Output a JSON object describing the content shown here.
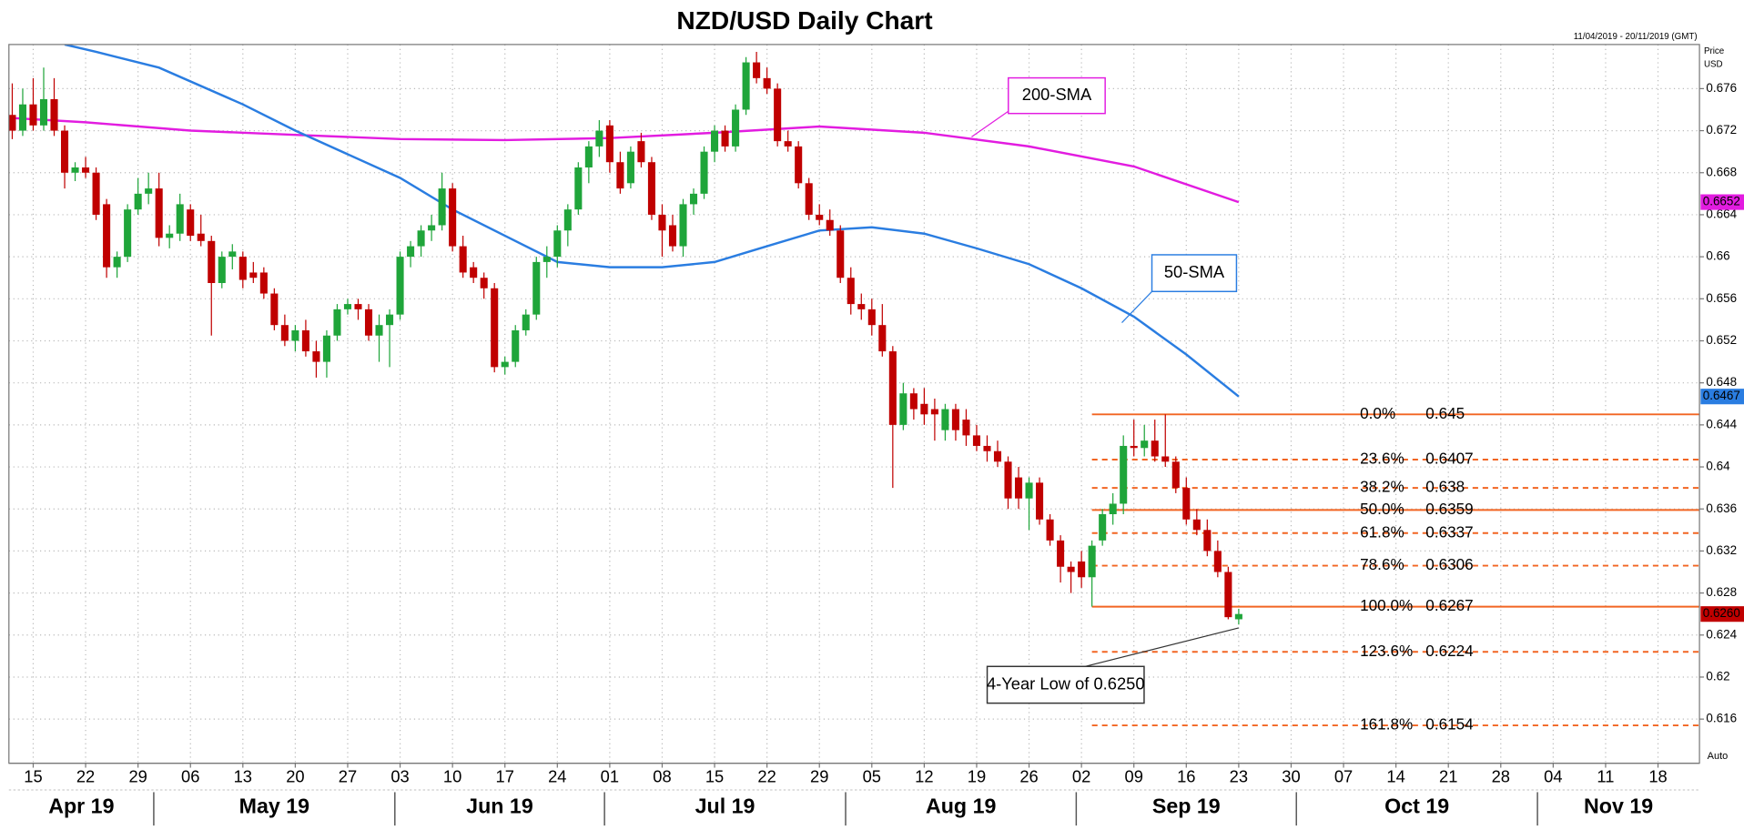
{
  "chart_data": {
    "type": "candlestick",
    "title": "NZD/USD Daily Chart",
    "date_range": "11/04/2019 - 20/11/2019 (GMT)",
    "y_axis_label": "Price",
    "y_axis_unit": "USD",
    "scale_mode": "Auto",
    "up_color": "#1fa53a",
    "down_color": "#c00000",
    "grid": true,
    "xlim": [
      "2019-04-11",
      "2019-11-21"
    ],
    "ylim": [
      0.6118,
      0.6802
    ],
    "yticks": [
      0.676,
      0.672,
      0.668,
      0.664,
      0.66,
      0.656,
      0.652,
      0.648,
      0.644,
      0.64,
      0.636,
      0.632,
      0.628,
      0.624,
      0.62,
      0.616
    ],
    "xticks": [
      {
        "value": "2019-04-15",
        "label": "15"
      },
      {
        "value": "2019-04-22",
        "label": "22"
      },
      {
        "value": "2019-04-29",
        "label": "29"
      },
      {
        "value": "2019-05-06",
        "label": "06"
      },
      {
        "value": "2019-05-13",
        "label": "13"
      },
      {
        "value": "2019-05-20",
        "label": "20"
      },
      {
        "value": "2019-05-27",
        "label": "27"
      },
      {
        "value": "2019-06-03",
        "label": "03"
      },
      {
        "value": "2019-06-10",
        "label": "10"
      },
      {
        "value": "2019-06-17",
        "label": "17"
      },
      {
        "value": "2019-06-24",
        "label": "24"
      },
      {
        "value": "2019-07-01",
        "label": "01"
      },
      {
        "value": "2019-07-08",
        "label": "08"
      },
      {
        "value": "2019-07-15",
        "label": "15"
      },
      {
        "value": "2019-07-22",
        "label": "22"
      },
      {
        "value": "2019-07-29",
        "label": "29"
      },
      {
        "value": "2019-08-05",
        "label": "05"
      },
      {
        "value": "2019-08-12",
        "label": "12"
      },
      {
        "value": "2019-08-19",
        "label": "19"
      },
      {
        "value": "2019-08-26",
        "label": "26"
      },
      {
        "value": "2019-09-02",
        "label": "02"
      },
      {
        "value": "2019-09-09",
        "label": "09"
      },
      {
        "value": "2019-09-16",
        "label": "16"
      },
      {
        "value": "2019-09-23",
        "label": "23"
      },
      {
        "value": "2019-09-30",
        "label": "30"
      },
      {
        "value": "2019-10-07",
        "label": "07"
      },
      {
        "value": "2019-10-14",
        "label": "14"
      },
      {
        "value": "2019-10-21",
        "label": "21"
      },
      {
        "value": "2019-10-28",
        "label": "28"
      },
      {
        "value": "2019-11-04",
        "label": "04"
      },
      {
        "value": "2019-11-11",
        "label": "11"
      },
      {
        "value": "2019-11-18",
        "label": "18"
      }
    ],
    "months": [
      {
        "value": "2019-04-01",
        "label": "Apr 19"
      },
      {
        "value": "2019-05-01",
        "label": "May 19"
      },
      {
        "value": "2019-06-01",
        "label": "Jun 19"
      },
      {
        "value": "2019-07-01",
        "label": "Jul 19"
      },
      {
        "value": "2019-08-01",
        "label": "Aug 19"
      },
      {
        "value": "2019-09-01",
        "label": "Sep 19"
      },
      {
        "value": "2019-10-01",
        "label": "Oct 19"
      },
      {
        "value": "2019-11-01",
        "label": "Nov 19"
      }
    ],
    "x": [
      "2019-04-11",
      "2019-04-12",
      "2019-04-15",
      "2019-04-16",
      "2019-04-17",
      "2019-04-18",
      "2019-04-19",
      "2019-04-22",
      "2019-04-23",
      "2019-04-24",
      "2019-04-25",
      "2019-04-26",
      "2019-04-29",
      "2019-04-30",
      "2019-05-01",
      "2019-05-02",
      "2019-05-03",
      "2019-05-06",
      "2019-05-07",
      "2019-05-08",
      "2019-05-09",
      "2019-05-10",
      "2019-05-13",
      "2019-05-14",
      "2019-05-15",
      "2019-05-16",
      "2019-05-17",
      "2019-05-20",
      "2019-05-21",
      "2019-05-22",
      "2019-05-23",
      "2019-05-24",
      "2019-05-27",
      "2019-05-28",
      "2019-05-29",
      "2019-05-30",
      "2019-05-31",
      "2019-06-03",
      "2019-06-04",
      "2019-06-05",
      "2019-06-06",
      "2019-06-07",
      "2019-06-10",
      "2019-06-11",
      "2019-06-12",
      "2019-06-13",
      "2019-06-14",
      "2019-06-17",
      "2019-06-18",
      "2019-06-19",
      "2019-06-20",
      "2019-06-21",
      "2019-06-24",
      "2019-06-25",
      "2019-06-26",
      "2019-06-27",
      "2019-06-28",
      "2019-07-01",
      "2019-07-02",
      "2019-07-03",
      "2019-07-04",
      "2019-07-05",
      "2019-07-08",
      "2019-07-09",
      "2019-07-10",
      "2019-07-11",
      "2019-07-12",
      "2019-07-15",
      "2019-07-16",
      "2019-07-17",
      "2019-07-18",
      "2019-07-19",
      "2019-07-22",
      "2019-07-23",
      "2019-07-24",
      "2019-07-25",
      "2019-07-26",
      "2019-07-29",
      "2019-07-30",
      "2019-07-31",
      "2019-08-01",
      "2019-08-02",
      "2019-08-05",
      "2019-08-06",
      "2019-08-07",
      "2019-08-08",
      "2019-08-09",
      "2019-08-12",
      "2019-08-13",
      "2019-08-14",
      "2019-08-15",
      "2019-08-16",
      "2019-08-19",
      "2019-08-20",
      "2019-08-21",
      "2019-08-22",
      "2019-08-23",
      "2019-08-26",
      "2019-08-27",
      "2019-08-28",
      "2019-08-29",
      "2019-08-30",
      "2019-09-02",
      "2019-09-03",
      "2019-09-04",
      "2019-09-05",
      "2019-09-06",
      "2019-09-09",
      "2019-09-10",
      "2019-09-11",
      "2019-09-12",
      "2019-09-13",
      "2019-09-16",
      "2019-09-17",
      "2019-09-18",
      "2019-09-19",
      "2019-09-20",
      "2019-09-23"
    ],
    "ohlc": [
      [
        0.6735,
        0.6765,
        0.6712,
        0.672
      ],
      [
        0.672,
        0.676,
        0.6715,
        0.6745
      ],
      [
        0.6745,
        0.677,
        0.672,
        0.6725
      ],
      [
        0.6725,
        0.678,
        0.672,
        0.675
      ],
      [
        0.675,
        0.677,
        0.6715,
        0.672
      ],
      [
        0.672,
        0.6725,
        0.6665,
        0.668
      ],
      [
        0.668,
        0.669,
        0.6672,
        0.6685
      ],
      [
        0.6685,
        0.6695,
        0.6675,
        0.668
      ],
      [
        0.668,
        0.6685,
        0.6635,
        0.664
      ],
      [
        0.665,
        0.6655,
        0.658,
        0.659
      ],
      [
        0.659,
        0.6605,
        0.658,
        0.66
      ],
      [
        0.66,
        0.665,
        0.6595,
        0.6645
      ],
      [
        0.6645,
        0.6675,
        0.664,
        0.666
      ],
      [
        0.666,
        0.668,
        0.665,
        0.6665
      ],
      [
        0.6665,
        0.668,
        0.661,
        0.6618
      ],
      [
        0.6618,
        0.663,
        0.6608,
        0.6622
      ],
      [
        0.6622,
        0.666,
        0.6615,
        0.665
      ],
      [
        0.6645,
        0.665,
        0.6615,
        0.662
      ],
      [
        0.6622,
        0.664,
        0.661,
        0.6615
      ],
      [
        0.6615,
        0.662,
        0.6525,
        0.6575
      ],
      [
        0.6575,
        0.6605,
        0.657,
        0.66
      ],
      [
        0.66,
        0.6612,
        0.6588,
        0.6605
      ],
      [
        0.66,
        0.6605,
        0.657,
        0.6578
      ],
      [
        0.6585,
        0.6595,
        0.6575,
        0.658
      ],
      [
        0.6585,
        0.659,
        0.656,
        0.6565
      ],
      [
        0.6565,
        0.657,
        0.653,
        0.6535
      ],
      [
        0.6535,
        0.6545,
        0.6515,
        0.652
      ],
      [
        0.652,
        0.6535,
        0.651,
        0.653
      ],
      [
        0.653,
        0.654,
        0.6505,
        0.651
      ],
      [
        0.651,
        0.652,
        0.6485,
        0.65
      ],
      [
        0.65,
        0.653,
        0.6485,
        0.6525
      ],
      [
        0.6525,
        0.6555,
        0.652,
        0.655
      ],
      [
        0.655,
        0.656,
        0.6545,
        0.6555
      ],
      [
        0.6555,
        0.656,
        0.654,
        0.655
      ],
      [
        0.655,
        0.6555,
        0.652,
        0.6525
      ],
      [
        0.6525,
        0.6545,
        0.65,
        0.6535
      ],
      [
        0.6535,
        0.655,
        0.6495,
        0.6545
      ],
      [
        0.6545,
        0.6605,
        0.654,
        0.66
      ],
      [
        0.66,
        0.6615,
        0.659,
        0.661
      ],
      [
        0.661,
        0.663,
        0.66,
        0.6625
      ],
      [
        0.6625,
        0.664,
        0.6615,
        0.663
      ],
      [
        0.663,
        0.668,
        0.6625,
        0.6665
      ],
      [
        0.6665,
        0.667,
        0.6605,
        0.661
      ],
      [
        0.661,
        0.662,
        0.658,
        0.6585
      ],
      [
        0.659,
        0.6595,
        0.6575,
        0.658
      ],
      [
        0.658,
        0.6585,
        0.656,
        0.657
      ],
      [
        0.657,
        0.6575,
        0.649,
        0.6495
      ],
      [
        0.6495,
        0.6505,
        0.6488,
        0.65
      ],
      [
        0.65,
        0.6535,
        0.6495,
        0.653
      ],
      [
        0.653,
        0.655,
        0.6525,
        0.6545
      ],
      [
        0.6545,
        0.66,
        0.654,
        0.6595
      ],
      [
        0.6595,
        0.661,
        0.658,
        0.66
      ],
      [
        0.66,
        0.663,
        0.659,
        0.6625
      ],
      [
        0.6625,
        0.665,
        0.661,
        0.6645
      ],
      [
        0.6645,
        0.669,
        0.664,
        0.6685
      ],
      [
        0.6685,
        0.671,
        0.667,
        0.6705
      ],
      [
        0.6705,
        0.673,
        0.6695,
        0.672
      ],
      [
        0.6725,
        0.673,
        0.668,
        0.669
      ],
      [
        0.669,
        0.67,
        0.666,
        0.6665
      ],
      [
        0.667,
        0.6705,
        0.6665,
        0.67
      ],
      [
        0.671,
        0.6718,
        0.6685,
        0.669
      ],
      [
        0.669,
        0.6695,
        0.6635,
        0.664
      ],
      [
        0.664,
        0.665,
        0.66,
        0.6625
      ],
      [
        0.663,
        0.664,
        0.6605,
        0.661
      ],
      [
        0.661,
        0.6655,
        0.66,
        0.665
      ],
      [
        0.665,
        0.6665,
        0.664,
        0.666
      ],
      [
        0.666,
        0.6705,
        0.6655,
        0.67
      ],
      [
        0.67,
        0.6725,
        0.669,
        0.672
      ],
      [
        0.672,
        0.6725,
        0.67,
        0.6705
      ],
      [
        0.6705,
        0.6745,
        0.67,
        0.674
      ],
      [
        0.674,
        0.679,
        0.6735,
        0.6785
      ],
      [
        0.6785,
        0.6795,
        0.6765,
        0.677
      ],
      [
        0.677,
        0.678,
        0.6755,
        0.676
      ],
      [
        0.676,
        0.6765,
        0.6705,
        0.671
      ],
      [
        0.671,
        0.672,
        0.67,
        0.6705
      ],
      [
        0.6705,
        0.671,
        0.6665,
        0.667
      ],
      [
        0.667,
        0.6675,
        0.6635,
        0.664
      ],
      [
        0.664,
        0.665,
        0.663,
        0.6635
      ],
      [
        0.6635,
        0.6645,
        0.662,
        0.6625
      ],
      [
        0.6625,
        0.663,
        0.6575,
        0.658
      ],
      [
        0.658,
        0.659,
        0.6545,
        0.6555
      ],
      [
        0.6555,
        0.6565,
        0.654,
        0.655
      ],
      [
        0.655,
        0.656,
        0.6525,
        0.6535
      ],
      [
        0.6535,
        0.6555,
        0.6505,
        0.651
      ],
      [
        0.651,
        0.6515,
        0.638,
        0.644
      ],
      [
        0.644,
        0.648,
        0.6435,
        0.647
      ],
      [
        0.647,
        0.6475,
        0.6445,
        0.6455
      ],
      [
        0.646,
        0.6475,
        0.644,
        0.645
      ],
      [
        0.6455,
        0.6465,
        0.6425,
        0.645
      ],
      [
        0.6435,
        0.646,
        0.6425,
        0.6455
      ],
      [
        0.6455,
        0.646,
        0.6425,
        0.6435
      ],
      [
        0.6445,
        0.6455,
        0.642,
        0.643
      ],
      [
        0.643,
        0.644,
        0.6415,
        0.642
      ],
      [
        0.642,
        0.643,
        0.6405,
        0.6415
      ],
      [
        0.6415,
        0.6425,
        0.64,
        0.6405
      ],
      [
        0.6405,
        0.641,
        0.636,
        0.637
      ],
      [
        0.639,
        0.64,
        0.636,
        0.637
      ],
      [
        0.637,
        0.639,
        0.634,
        0.6385
      ],
      [
        0.6385,
        0.639,
        0.6345,
        0.635
      ],
      [
        0.635,
        0.6355,
        0.6325,
        0.633
      ],
      [
        0.633,
        0.6335,
        0.629,
        0.6305
      ],
      [
        0.6305,
        0.631,
        0.628,
        0.63
      ],
      [
        0.631,
        0.632,
        0.6285,
        0.6295
      ],
      [
        0.6295,
        0.633,
        0.6267,
        0.6325
      ],
      [
        0.633,
        0.636,
        0.6325,
        0.6355
      ],
      [
        0.6355,
        0.6375,
        0.6345,
        0.6365
      ],
      [
        0.6365,
        0.643,
        0.6355,
        0.642
      ],
      [
        0.642,
        0.6445,
        0.641,
        0.6418
      ],
      [
        0.6418,
        0.644,
        0.641,
        0.6425
      ],
      [
        0.6425,
        0.6445,
        0.6405,
        0.641
      ],
      [
        0.641,
        0.645,
        0.64,
        0.6405
      ],
      [
        0.6405,
        0.641,
        0.6375,
        0.638
      ],
      [
        0.638,
        0.639,
        0.6345,
        0.635
      ],
      [
        0.635,
        0.636,
        0.6335,
        0.634
      ],
      [
        0.634,
        0.635,
        0.6315,
        0.632
      ],
      [
        0.632,
        0.633,
        0.6295,
        0.63
      ],
      [
        0.63,
        0.6305,
        0.6255,
        0.6257
      ],
      [
        0.6255,
        0.6265,
        0.625,
        0.626
      ]
    ],
    "last_price": {
      "value": 0.626,
      "label": "0.6260"
    },
    "lines": [
      {
        "name": "200-SMA",
        "color": "#e21ce0",
        "x": [
          "2019-04-11",
          "2019-04-22",
          "2019-05-06",
          "2019-05-20",
          "2019-06-03",
          "2019-06-17",
          "2019-07-01",
          "2019-07-15",
          "2019-07-29",
          "2019-08-12",
          "2019-08-26",
          "2019-09-09",
          "2019-09-23"
        ],
        "values": [
          0.6732,
          0.6728,
          0.672,
          0.6716,
          0.6712,
          0.6711,
          0.6713,
          0.6718,
          0.6724,
          0.6718,
          0.6705,
          0.6686,
          0.6652
        ]
      },
      {
        "name": "50-SMA",
        "color": "#2a7de1",
        "x": [
          "2019-04-18",
          "2019-04-23",
          "2019-05-01",
          "2019-05-13",
          "2019-05-20",
          "2019-06-03",
          "2019-06-10",
          "2019-06-17",
          "2019-06-24",
          "2019-07-01",
          "2019-07-08",
          "2019-07-15",
          "2019-07-22",
          "2019-07-29",
          "2019-08-05",
          "2019-08-12",
          "2019-08-19",
          "2019-08-26",
          "2019-09-02",
          "2019-09-09",
          "2019-09-16",
          "2019-09-23"
        ],
        "values": [
          0.6802,
          0.6795,
          0.678,
          0.6745,
          0.672,
          0.6675,
          0.6645,
          0.662,
          0.6595,
          0.659,
          0.659,
          0.6595,
          0.661,
          0.6625,
          0.6628,
          0.6622,
          0.6608,
          0.6593,
          0.657,
          0.6543,
          0.6507,
          0.6467
        ]
      }
    ],
    "fibonacci": {
      "start": "2019-09-03",
      "color": "#f26522",
      "levels": [
        {
          "label": "0.0%",
          "value": 0.645,
          "style": "solid"
        },
        {
          "label": "23.6%",
          "value": 0.6407,
          "style": "dashed"
        },
        {
          "label": "38.2%",
          "value": 0.638,
          "style": "dashed"
        },
        {
          "label": "50.0%",
          "value": 0.6359,
          "style": "solid"
        },
        {
          "label": "61.8%",
          "value": 0.6337,
          "style": "dashed"
        },
        {
          "label": "78.6%",
          "value": 0.6306,
          "style": "dashed"
        },
        {
          "label": "100.0%",
          "value": 0.6267,
          "style": "solid"
        },
        {
          "label": "123.6%",
          "value": 0.6224,
          "style": "dashed"
        },
        {
          "label": "161.8%",
          "value": 0.6154,
          "style": "dashed"
        }
      ]
    },
    "annotation": "4-Year Low of 0.6250"
  }
}
